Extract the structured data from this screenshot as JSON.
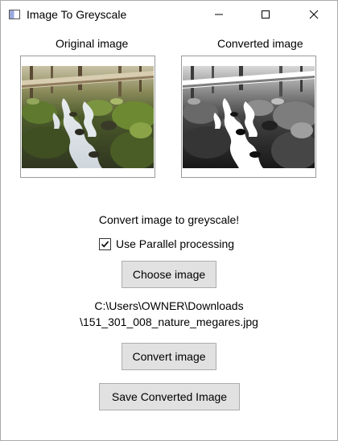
{
  "window": {
    "title": "Image To Greyscale"
  },
  "captions": {
    "original": "Original image",
    "converted": "Converted image"
  },
  "main": {
    "headline": "Convert image to greyscale!",
    "parallel_label": "Use Parallel processing",
    "parallel_checked": true,
    "choose_button": "Choose image",
    "file_path_line1": "C:\\Users\\OWNER\\Downloads",
    "file_path_line2": "\\151_301_008_nature_megares.jpg",
    "convert_button": "Convert image",
    "save_button": "Save Converted Image"
  },
  "icons": {
    "app": "app-window-icon",
    "minimize": "minimize-icon",
    "maximize": "maximize-icon",
    "close": "close-icon",
    "check": "checkmark-icon"
  }
}
